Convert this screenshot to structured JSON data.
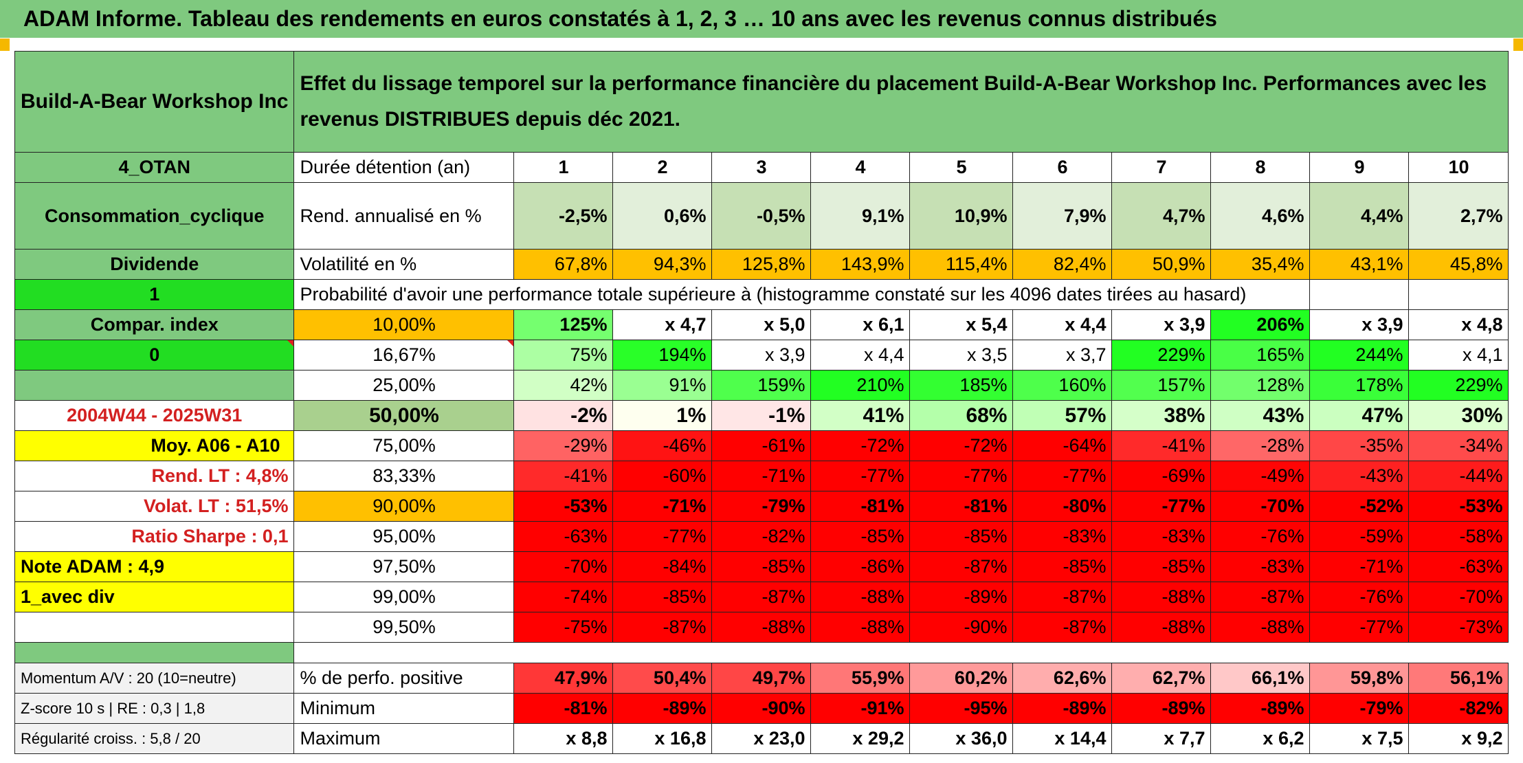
{
  "header": {
    "title": "ADAM Informe. Tableau des rendements en euros constatés à 1, 2, 3 … 10 ans avec les revenus connus distribués"
  },
  "left": {
    "company": "Build-A-Bear Workshop Inc",
    "code": "4_OTAN",
    "sector": "Consommation_cyclique",
    "dividend_label": "Dividende",
    "val1": "1",
    "compar_index": "Compar. index",
    "val0": "0",
    "period": "2004W44 - 2025W31",
    "moy": "Moy. A06 - A10",
    "rend_lt": "Rend. LT :   4,8%",
    "volat_lt": "Volat. LT :   51,5%",
    "sharpe": "Ratio Sharpe :   0,1",
    "note": "Note ADAM : 4,9",
    "avec_div": "1_avec div",
    "momentum": "Momentum A/V : 20 (10=neutre)",
    "zscore": "Z-score 10 s | RE : 0,3 | 1,8",
    "regularite": "Régularité croiss. : 5,8 / 20"
  },
  "title_text": "Effet du lissage temporel sur la performance financière du placement Build-A-Bear Workshop Inc. Performances avec les revenus DISTRIBUES depuis déc 2021.",
  "labels": {
    "duree": "Durée détention (an)",
    "rend": "Rend. annualisé en %",
    "volat": "Volatilité en %",
    "proba": "Probabilité d'avoir une performance totale supérieure à (histogramme constaté sur les 4096 dates tirées au hasard)",
    "positive": "% de perfo. positive",
    "minimum": "Minimum",
    "maximum": "Maximum"
  },
  "years": [
    "1",
    "2",
    "3",
    "4",
    "5",
    "6",
    "7",
    "8",
    "9",
    "10"
  ],
  "rend": [
    "-2,5%",
    "0,6%",
    "-0,5%",
    "9,1%",
    "10,9%",
    "7,9%",
    "4,7%",
    "4,6%",
    "4,4%",
    "2,7%"
  ],
  "volat": [
    "67,8%",
    "94,3%",
    "125,8%",
    "143,9%",
    "115,4%",
    "82,4%",
    "50,9%",
    "35,4%",
    "43,1%",
    "45,8%"
  ],
  "prob_rows": [
    {
      "pct": "10,00%",
      "values": [
        "125%",
        "x 4,7",
        "x 5,0",
        "x 6,1",
        "x 5,4",
        "x 4,4",
        "x 3,9",
        "206%",
        "x 3,9",
        "x 4,8"
      ]
    },
    {
      "pct": "16,67%",
      "values": [
        "75%",
        "194%",
        "x 3,9",
        "x 4,4",
        "x 3,5",
        "x 3,7",
        "229%",
        "165%",
        "244%",
        "x 4,1"
      ]
    },
    {
      "pct": "25,00%",
      "values": [
        "42%",
        "91%",
        "159%",
        "210%",
        "185%",
        "160%",
        "157%",
        "128%",
        "178%",
        "229%"
      ]
    },
    {
      "pct": "50,00%",
      "values": [
        "-2%",
        "1%",
        "-1%",
        "41%",
        "68%",
        "57%",
        "38%",
        "43%",
        "47%",
        "30%"
      ]
    },
    {
      "pct": "75,00%",
      "values": [
        "-29%",
        "-46%",
        "-61%",
        "-72%",
        "-72%",
        "-64%",
        "-41%",
        "-28%",
        "-35%",
        "-34%"
      ]
    },
    {
      "pct": "83,33%",
      "values": [
        "-41%",
        "-60%",
        "-71%",
        "-77%",
        "-77%",
        "-77%",
        "-69%",
        "-49%",
        "-43%",
        "-44%"
      ]
    },
    {
      "pct": "90,00%",
      "values": [
        "-53%",
        "-71%",
        "-79%",
        "-81%",
        "-81%",
        "-80%",
        "-77%",
        "-70%",
        "-52%",
        "-53%"
      ]
    },
    {
      "pct": "95,00%",
      "values": [
        "-63%",
        "-77%",
        "-82%",
        "-85%",
        "-85%",
        "-83%",
        "-83%",
        "-76%",
        "-59%",
        "-58%"
      ]
    },
    {
      "pct": "97,50%",
      "values": [
        "-70%",
        "-84%",
        "-85%",
        "-86%",
        "-87%",
        "-85%",
        "-85%",
        "-83%",
        "-71%",
        "-63%"
      ]
    },
    {
      "pct": "99,00%",
      "values": [
        "-74%",
        "-85%",
        "-87%",
        "-88%",
        "-89%",
        "-87%",
        "-88%",
        "-87%",
        "-76%",
        "-70%"
      ]
    },
    {
      "pct": "99,50%",
      "values": [
        "-75%",
        "-87%",
        "-88%",
        "-88%",
        "-90%",
        "-87%",
        "-88%",
        "-88%",
        "-77%",
        "-73%"
      ]
    }
  ],
  "positive": [
    "47,9%",
    "50,4%",
    "49,7%",
    "55,9%",
    "60,2%",
    "62,6%",
    "62,7%",
    "66,1%",
    "59,8%",
    "56,1%"
  ],
  "minimum": [
    "-81%",
    "-89%",
    "-90%",
    "-91%",
    "-95%",
    "-89%",
    "-89%",
    "-89%",
    "-79%",
    "-82%"
  ],
  "maximum": [
    "x 8,8",
    "x 16,8",
    "x 23,0",
    "x 29,2",
    "x 36,0",
    "x 14,4",
    "x 7,7",
    "x 6,2",
    "x 7,5",
    "x 9,2"
  ],
  "colors": {
    "header_green": "#7fc97f",
    "bright_green": "#22dd22",
    "orange": "#ffc000",
    "yellow": "#ffff00",
    "red": "#ff0000",
    "pale_green": "#c6e0b4"
  }
}
